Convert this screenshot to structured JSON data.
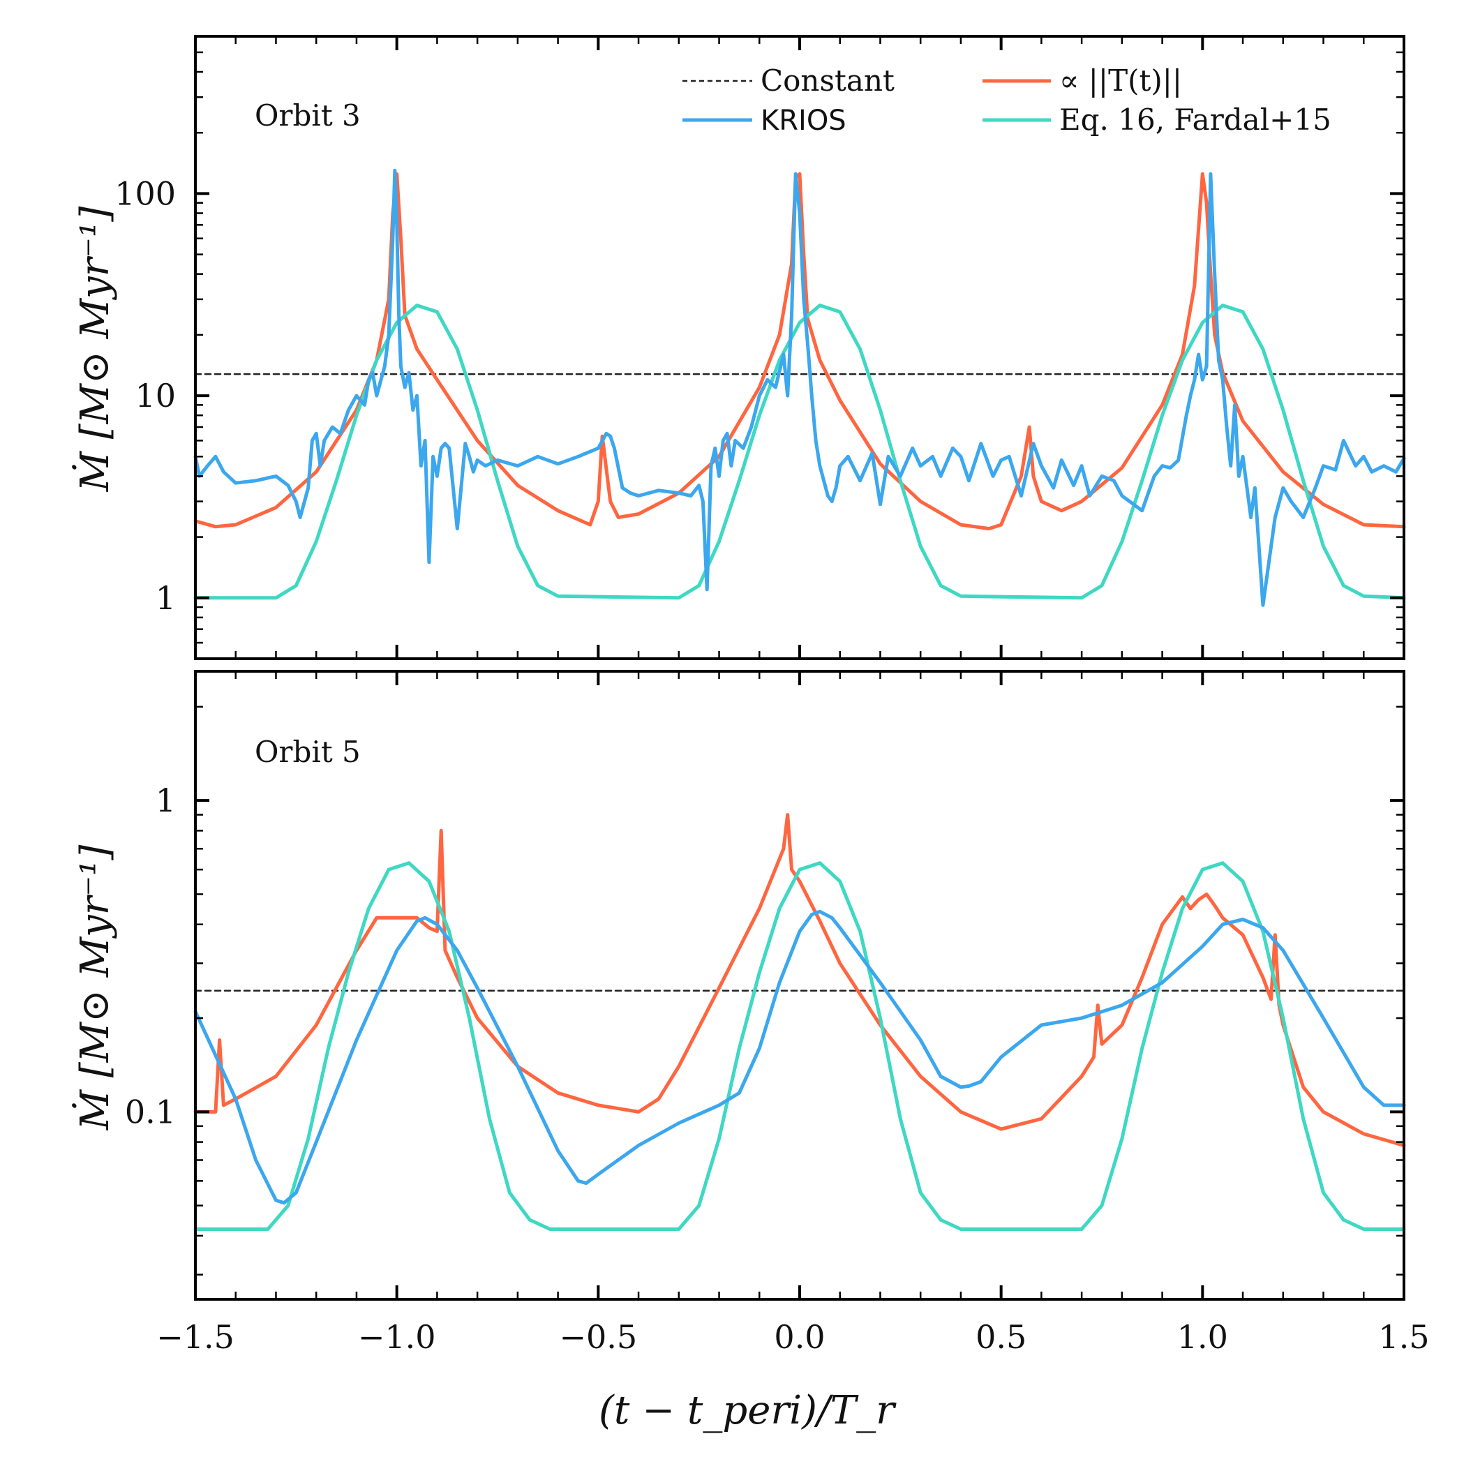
{
  "chart_data": [
    {
      "type": "line",
      "panel_label": "Orbit 3",
      "yscale": "log",
      "ylim": [
        0.5,
        600
      ],
      "xlim": [
        -1.5,
        1.5
      ],
      "ylabel": "Ṁ [M⊙ Myr⁻¹]",
      "xlabel": "",
      "ytick_values": [
        1,
        10,
        100
      ],
      "ytick_labels": [
        "1",
        "10",
        "100"
      ],
      "legend_position": "top-right",
      "series": [
        {
          "name": "Constant",
          "color": "#222222",
          "dashed": true,
          "x": [
            -1.5,
            1.5
          ],
          "y": [
            12.8,
            12.8
          ]
        },
        {
          "name": "∝ ||T(t)||",
          "color": "#FF6640",
          "x": [
            -1.5,
            -1.45,
            -1.4,
            -1.3,
            -1.2,
            -1.1,
            -1.05,
            -1.02,
            -1.01,
            -1.0,
            -0.99,
            -0.98,
            -0.95,
            -0.9,
            -0.8,
            -0.7,
            -0.6,
            -0.52,
            -0.5,
            -0.49,
            -0.47,
            -0.45,
            -0.4,
            -0.3,
            -0.2,
            -0.1,
            -0.05,
            -0.02,
            -0.01,
            0.0,
            0.01,
            0.02,
            0.05,
            0.1,
            0.2,
            0.3,
            0.4,
            0.47,
            0.5,
            0.55,
            0.57,
            0.58,
            0.6,
            0.65,
            0.7,
            0.8,
            0.9,
            0.95,
            0.98,
            1.0,
            1.01,
            1.02,
            1.03,
            1.05,
            1.1,
            1.2,
            1.3,
            1.4,
            1.5
          ],
          "y": [
            2.4,
            2.25,
            2.3,
            2.8,
            4.2,
            8.5,
            15,
            30,
            80,
            125,
            60,
            25,
            17,
            12,
            6,
            3.6,
            2.7,
            2.3,
            3.0,
            6.3,
            3.0,
            2.5,
            2.6,
            3.3,
            5.0,
            11,
            20,
            45,
            120,
            125,
            50,
            24,
            15,
            9.5,
            4.6,
            3.0,
            2.3,
            2.2,
            2.3,
            4.0,
            7.0,
            4.0,
            3.0,
            2.7,
            3.0,
            4.4,
            9,
            16,
            35,
            125,
            90,
            40,
            20,
            13,
            7.5,
            4.2,
            2.9,
            2.3,
            2.25
          ]
        },
        {
          "name": "KRIOS",
          "color": "#3BA7EE",
          "x": [
            -1.5,
            -1.49,
            -1.47,
            -1.45,
            -1.43,
            -1.4,
            -1.35,
            -1.3,
            -1.27,
            -1.25,
            -1.24,
            -1.22,
            -1.21,
            -1.2,
            -1.19,
            -1.18,
            -1.16,
            -1.14,
            -1.12,
            -1.1,
            -1.08,
            -1.07,
            -1.06,
            -1.05,
            -1.03,
            -1.02,
            -1.01,
            -1.005,
            -1.0,
            -0.995,
            -0.99,
            -0.98,
            -0.97,
            -0.96,
            -0.95,
            -0.94,
            -0.93,
            -0.92,
            -0.91,
            -0.9,
            -0.89,
            -0.88,
            -0.87,
            -0.85,
            -0.83,
            -0.82,
            -0.81,
            -0.8,
            -0.78,
            -0.75,
            -0.7,
            -0.65,
            -0.6,
            -0.55,
            -0.5,
            -0.48,
            -0.47,
            -0.46,
            -0.44,
            -0.42,
            -0.4,
            -0.35,
            -0.3,
            -0.27,
            -0.25,
            -0.24,
            -0.23,
            -0.22,
            -0.21,
            -0.2,
            -0.19,
            -0.18,
            -0.17,
            -0.16,
            -0.14,
            -0.12,
            -0.1,
            -0.08,
            -0.06,
            -0.04,
            -0.03,
            -0.02,
            -0.01,
            0.0,
            0.01,
            0.02,
            0.03,
            0.04,
            0.05,
            0.06,
            0.07,
            0.08,
            0.09,
            0.1,
            0.12,
            0.15,
            0.18,
            0.2,
            0.22,
            0.25,
            0.28,
            0.3,
            0.33,
            0.35,
            0.38,
            0.4,
            0.42,
            0.45,
            0.48,
            0.5,
            0.52,
            0.55,
            0.58,
            0.6,
            0.63,
            0.65,
            0.68,
            0.7,
            0.72,
            0.75,
            0.78,
            0.8,
            0.85,
            0.88,
            0.9,
            0.92,
            0.94,
            0.96,
            0.97,
            0.98,
            0.99,
            1.0,
            1.01,
            1.02,
            1.03,
            1.04,
            1.05,
            1.06,
            1.07,
            1.08,
            1.09,
            1.1,
            1.12,
            1.13,
            1.15,
            1.18,
            1.2,
            1.22,
            1.25,
            1.28,
            1.3,
            1.33,
            1.35,
            1.38,
            1.4,
            1.42,
            1.45,
            1.48,
            1.5
          ],
          "y": [
            5.0,
            4.0,
            4.5,
            5.0,
            4.2,
            3.7,
            3.8,
            4.0,
            3.6,
            3.0,
            2.5,
            3.5,
            6.0,
            6.5,
            4.5,
            6.0,
            7.0,
            6.5,
            8.5,
            10,
            9.0,
            12,
            13,
            10,
            14,
            20,
            60,
            130,
            70,
            25,
            14,
            11,
            13,
            8.5,
            10,
            4.5,
            6.0,
            1.5,
            5.0,
            4.0,
            5.5,
            5.8,
            5.5,
            2.2,
            5.8,
            5.0,
            4.2,
            4.8,
            4.5,
            4.8,
            4.5,
            5.0,
            4.6,
            5.0,
            5.5,
            6.5,
            6.3,
            5.5,
            3.5,
            3.3,
            3.2,
            3.4,
            3.3,
            3.2,
            3.6,
            3.0,
            1.1,
            4.5,
            5.5,
            4.0,
            6.0,
            6.5,
            4.5,
            6.0,
            5.5,
            7.0,
            10,
            12,
            11,
            16,
            10,
            25,
            125,
            80,
            30,
            18,
            10,
            6.0,
            4.5,
            3.8,
            3.2,
            3.0,
            3.5,
            4.5,
            5.0,
            3.8,
            5.2,
            2.9,
            5.0,
            4.0,
            5.5,
            4.5,
            5.0,
            4.0,
            5.5,
            5.0,
            3.8,
            5.8,
            4.0,
            4.8,
            5.0,
            3.2,
            5.8,
            4.5,
            3.5,
            4.8,
            3.6,
            4.5,
            3.2,
            4.0,
            3.8,
            3.2,
            2.7,
            4.0,
            4.5,
            4.4,
            4.8,
            8.0,
            10,
            12,
            16,
            12,
            14,
            125,
            40,
            15,
            12,
            7.0,
            4.5,
            9.0,
            4.0,
            5.0,
            2.5,
            3.5,
            0.92,
            2.5,
            3.5,
            3.0,
            2.5,
            3.5,
            4.5,
            4.3,
            6.0,
            4.5,
            5.0,
            4.2,
            4.5,
            4.2,
            4.9
          ]
        },
        {
          "name": "Eq. 16, Fardal+15",
          "color": "#3ED8C3",
          "x": [
            -1.5,
            -1.3,
            -1.25,
            -1.2,
            -1.15,
            -1.1,
            -1.05,
            -1.0,
            -0.95,
            -0.9,
            -0.85,
            -0.8,
            -0.75,
            -0.7,
            -0.65,
            -0.6,
            -0.3,
            -0.25,
            -0.2,
            -0.15,
            -0.1,
            -0.05,
            0.0,
            0.05,
            0.1,
            0.15,
            0.2,
            0.25,
            0.3,
            0.35,
            0.4,
            0.7,
            0.75,
            0.8,
            0.85,
            0.9,
            0.95,
            1.0,
            1.05,
            1.1,
            1.15,
            1.2,
            1.25,
            1.3,
            1.35,
            1.4,
            1.5
          ],
          "y": [
            1.0,
            1.0,
            1.15,
            1.9,
            3.8,
            8.0,
            15,
            23,
            28,
            26,
            17,
            8.5,
            3.8,
            1.8,
            1.15,
            1.02,
            1.0,
            1.15,
            1.9,
            3.8,
            8.0,
            15,
            23,
            28,
            26,
            17,
            8.5,
            3.8,
            1.8,
            1.15,
            1.02,
            1.0,
            1.15,
            1.9,
            3.8,
            8.0,
            15,
            23,
            28,
            26,
            17,
            8.5,
            3.8,
            1.8,
            1.15,
            1.02,
            1.0
          ]
        }
      ]
    },
    {
      "type": "line",
      "panel_label": "Orbit 5",
      "yscale": "log",
      "ylim": [
        0.025,
        2.6
      ],
      "xlim": [
        -1.5,
        1.5
      ],
      "ylabel": "Ṁ [M⊙ Myr⁻¹]",
      "xlabel": "(t − t_peri)/T_r",
      "ytick_values": [
        0.1,
        1
      ],
      "ytick_labels": [
        "0.1",
        "1"
      ],
      "xtick_values": [
        -1.5,
        -1.0,
        -0.5,
        0.0,
        0.5,
        1.0,
        1.5
      ],
      "xtick_labels": [
        "−1.5",
        "−1.0",
        "−0.5",
        "0.0",
        "0.5",
        "1.0",
        "1.5"
      ],
      "series": [
        {
          "name": "Constant",
          "color": "#222222",
          "dashed": true,
          "x": [
            -1.5,
            1.5
          ],
          "y": [
            0.245,
            0.245
          ]
        },
        {
          "name": "∝ ||T(t)||",
          "color": "#FF6640",
          "x": [
            -1.5,
            -1.46,
            -1.45,
            -1.44,
            -1.43,
            -1.4,
            -1.3,
            -1.2,
            -1.1,
            -1.05,
            -1.0,
            -0.95,
            -0.92,
            -0.9,
            -0.89,
            -0.88,
            -0.85,
            -0.8,
            -0.7,
            -0.6,
            -0.5,
            -0.4,
            -0.35,
            -0.3,
            -0.2,
            -0.1,
            -0.04,
            -0.03,
            -0.02,
            0.0,
            0.05,
            0.1,
            0.2,
            0.3,
            0.4,
            0.5,
            0.6,
            0.7,
            0.73,
            0.74,
            0.75,
            0.8,
            0.85,
            0.9,
            0.95,
            0.97,
            0.99,
            1.01,
            1.03,
            1.05,
            1.1,
            1.15,
            1.17,
            1.18,
            1.19,
            1.2,
            1.25,
            1.3,
            1.4,
            1.5
          ],
          "y": [
            0.1,
            0.1,
            0.1,
            0.17,
            0.105,
            0.11,
            0.13,
            0.19,
            0.33,
            0.42,
            0.42,
            0.42,
            0.39,
            0.38,
            0.8,
            0.33,
            0.27,
            0.2,
            0.14,
            0.115,
            0.105,
            0.1,
            0.11,
            0.14,
            0.25,
            0.45,
            0.7,
            0.9,
            0.6,
            0.55,
            0.41,
            0.3,
            0.19,
            0.13,
            0.1,
            0.088,
            0.095,
            0.13,
            0.15,
            0.22,
            0.165,
            0.19,
            0.27,
            0.4,
            0.49,
            0.45,
            0.48,
            0.5,
            0.46,
            0.42,
            0.37,
            0.27,
            0.23,
            0.37,
            0.22,
            0.19,
            0.12,
            0.1,
            0.085,
            0.078
          ]
        },
        {
          "name": "KRIOS",
          "color": "#3BA7EE",
          "x": [
            -1.5,
            -1.4,
            -1.35,
            -1.3,
            -1.28,
            -1.25,
            -1.2,
            -1.1,
            -1.0,
            -0.95,
            -0.93,
            -0.9,
            -0.85,
            -0.8,
            -0.7,
            -0.6,
            -0.55,
            -0.53,
            -0.5,
            -0.4,
            -0.3,
            -0.2,
            -0.15,
            -0.1,
            -0.05,
            0.0,
            0.03,
            0.05,
            0.08,
            0.1,
            0.2,
            0.3,
            0.35,
            0.4,
            0.42,
            0.45,
            0.5,
            0.6,
            0.7,
            0.8,
            0.9,
            1.0,
            1.05,
            1.1,
            1.15,
            1.2,
            1.3,
            1.4,
            1.45,
            1.5
          ],
          "y": [
            0.21,
            0.11,
            0.07,
            0.052,
            0.051,
            0.055,
            0.08,
            0.17,
            0.33,
            0.41,
            0.42,
            0.4,
            0.33,
            0.25,
            0.14,
            0.075,
            0.06,
            0.059,
            0.063,
            0.078,
            0.092,
            0.105,
            0.115,
            0.16,
            0.26,
            0.38,
            0.43,
            0.44,
            0.42,
            0.39,
            0.26,
            0.17,
            0.13,
            0.12,
            0.121,
            0.125,
            0.15,
            0.19,
            0.2,
            0.22,
            0.26,
            0.34,
            0.4,
            0.415,
            0.39,
            0.33,
            0.2,
            0.12,
            0.105,
            0.105
          ]
        },
        {
          "name": "Eq. 16, Fardal+15",
          "color": "#3ED8C3",
          "x": [
            -1.5,
            -1.32,
            -1.27,
            -1.22,
            -1.17,
            -1.12,
            -1.07,
            -1.02,
            -0.97,
            -0.92,
            -0.87,
            -0.82,
            -0.77,
            -0.72,
            -0.67,
            -0.62,
            -0.5,
            -0.3,
            -0.25,
            -0.2,
            -0.15,
            -0.1,
            -0.05,
            0.0,
            0.05,
            0.1,
            0.15,
            0.2,
            0.25,
            0.3,
            0.35,
            0.4,
            0.5,
            0.7,
            0.75,
            0.8,
            0.85,
            0.9,
            0.95,
            1.0,
            1.05,
            1.1,
            1.15,
            1.2,
            1.25,
            1.3,
            1.35,
            1.4,
            1.5
          ],
          "y": [
            0.042,
            0.042,
            0.05,
            0.082,
            0.16,
            0.28,
            0.45,
            0.6,
            0.63,
            0.55,
            0.38,
            0.2,
            0.095,
            0.055,
            0.045,
            0.042,
            0.042,
            0.042,
            0.05,
            0.082,
            0.16,
            0.28,
            0.45,
            0.6,
            0.63,
            0.55,
            0.38,
            0.2,
            0.095,
            0.055,
            0.045,
            0.042,
            0.042,
            0.042,
            0.05,
            0.082,
            0.16,
            0.28,
            0.45,
            0.6,
            0.63,
            0.55,
            0.38,
            0.2,
            0.095,
            0.055,
            0.045,
            0.042,
            0.042
          ]
        }
      ]
    }
  ],
  "legend": {
    "constant": "Constant",
    "krios": "KRIOS",
    "torque": "∝ ||T(t)||",
    "fardal": "Eq. 16, Fardal+15"
  },
  "axes": {
    "ylabel_top": "Ṁ [M⊙ Myr⁻¹]",
    "ylabel_bottom": "Ṁ [M⊙ Myr⁻¹]",
    "xlabel": "(t − t_peri)/T_r"
  }
}
